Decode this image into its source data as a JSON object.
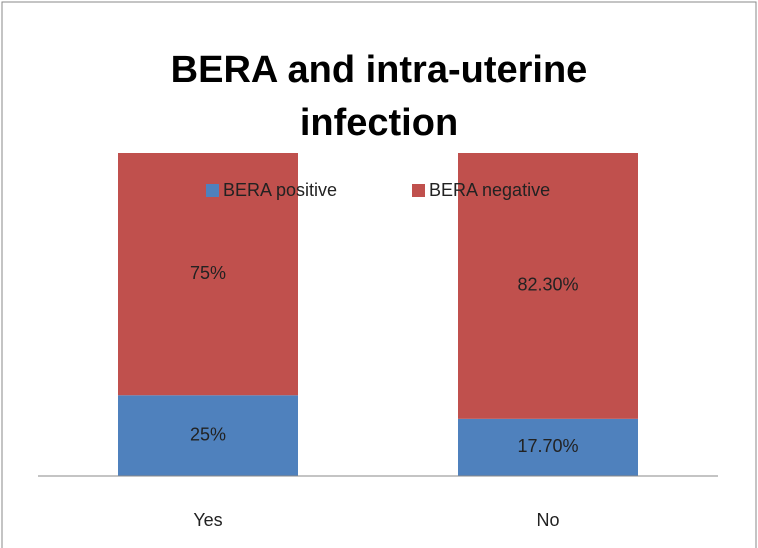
{
  "chart_data": {
    "type": "stacked_bar",
    "title": "BERA and intra-uterine infection",
    "categories": [
      "Yes",
      "No"
    ],
    "series": [
      {
        "name": "BERA positive",
        "color": "#4f81bd",
        "values": [
          25,
          17.7
        ],
        "value_labels": [
          "25%",
          "17.70%"
        ]
      },
      {
        "name": "BERA negative",
        "color": "#c0504d",
        "values": [
          75,
          82.3
        ],
        "value_labels": [
          "75%",
          "82.30%"
        ]
      }
    ],
    "ylim": [
      0,
      100
    ]
  }
}
